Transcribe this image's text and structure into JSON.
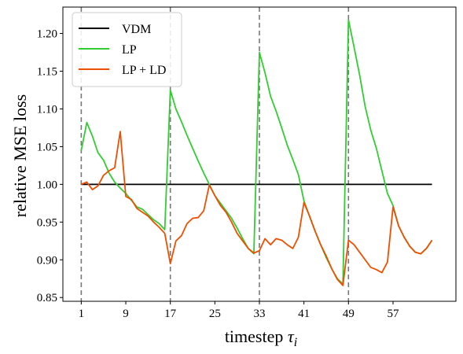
{
  "chart_data": {
    "type": "line",
    "xlabel": "timestep",
    "xlabel_symbol": "τ",
    "xlabel_subscript": "i",
    "ylabel": "relative MSE loss",
    "xlim": [
      -2.3,
      68.3
    ],
    "ylim": [
      0.845,
      1.235
    ],
    "xticks": [
      1,
      9,
      17,
      25,
      33,
      41,
      49,
      57
    ],
    "yticks": [
      0.85,
      0.9,
      0.95,
      1.0,
      1.05,
      1.1,
      1.15,
      1.2
    ],
    "ytick_labels": [
      "0.85",
      "0.90",
      "0.95",
      "1.00",
      "1.05",
      "1.10",
      "1.15",
      "1.20"
    ],
    "vlines": [
      1,
      17,
      33,
      49
    ],
    "grid": false,
    "legend_position": "top-left",
    "series": [
      {
        "name": "VDM",
        "color": "#000000",
        "x": [
          1,
          64
        ],
        "y": [
          1.0,
          1.0
        ]
      },
      {
        "name": "LP",
        "color": "#33cc33",
        "x": [
          1,
          2,
          3,
          4,
          5,
          6,
          7,
          8,
          9,
          10,
          11,
          12,
          13,
          14,
          15,
          16,
          17,
          18,
          19,
          20,
          21,
          22,
          23,
          24,
          25,
          26,
          27,
          28,
          29,
          30,
          31,
          32,
          33,
          34,
          35,
          36,
          37,
          38,
          39,
          40,
          41,
          42,
          43,
          44,
          45,
          46,
          47,
          48,
          49,
          50,
          51,
          52,
          53,
          54,
          55,
          56,
          57,
          58,
          59,
          60,
          61,
          62,
          63,
          64
        ],
        "y": [
          1.045,
          1.082,
          1.064,
          1.042,
          1.032,
          1.015,
          1.003,
          0.995,
          0.988,
          0.979,
          0.97,
          0.967,
          0.96,
          0.953,
          0.948,
          0.94,
          1.125,
          1.1,
          1.083,
          1.065,
          1.048,
          1.031,
          1.015,
          1.0,
          0.985,
          0.975,
          0.965,
          0.955,
          0.942,
          0.928,
          0.915,
          0.908,
          1.175,
          1.148,
          1.117,
          1.097,
          1.075,
          1.052,
          1.033,
          1.013,
          0.978,
          0.958,
          0.938,
          0.92,
          0.903,
          0.888,
          0.875,
          0.868,
          1.218,
          1.182,
          1.145,
          1.103,
          1.072,
          1.048,
          1.018,
          0.988,
          0.972,
          0.945,
          0.93,
          0.918,
          0.91,
          0.908,
          0.915,
          0.926
        ]
      },
      {
        "name": "LP + LD",
        "color": "#ee4f00",
        "x": [
          1,
          2,
          3,
          4,
          5,
          6,
          7,
          8,
          9,
          10,
          11,
          12,
          13,
          14,
          15,
          16,
          17,
          18,
          19,
          20,
          21,
          22,
          23,
          24,
          25,
          26,
          27,
          28,
          29,
          30,
          31,
          32,
          33,
          34,
          35,
          36,
          37,
          38,
          39,
          40,
          41,
          42,
          43,
          44,
          45,
          46,
          47,
          48,
          49,
          50,
          51,
          52,
          53,
          54,
          55,
          56,
          57,
          58,
          59,
          60,
          61,
          62,
          63,
          64
        ],
        "y": [
          1.0,
          1.003,
          0.993,
          0.998,
          1.012,
          1.018,
          1.022,
          1.07,
          0.984,
          0.98,
          0.968,
          0.963,
          0.958,
          0.95,
          0.943,
          0.935,
          0.895,
          0.925,
          0.932,
          0.948,
          0.955,
          0.956,
          0.965,
          0.999,
          0.985,
          0.972,
          0.963,
          0.95,
          0.935,
          0.925,
          0.915,
          0.909,
          0.912,
          0.928,
          0.92,
          0.928,
          0.926,
          0.92,
          0.915,
          0.93,
          0.976,
          0.958,
          0.938,
          0.92,
          0.905,
          0.888,
          0.874,
          0.866,
          0.926,
          0.92,
          0.91,
          0.9,
          0.89,
          0.887,
          0.883,
          0.897,
          0.97,
          0.945,
          0.93,
          0.918,
          0.91,
          0.908,
          0.915,
          0.926
        ]
      }
    ]
  }
}
